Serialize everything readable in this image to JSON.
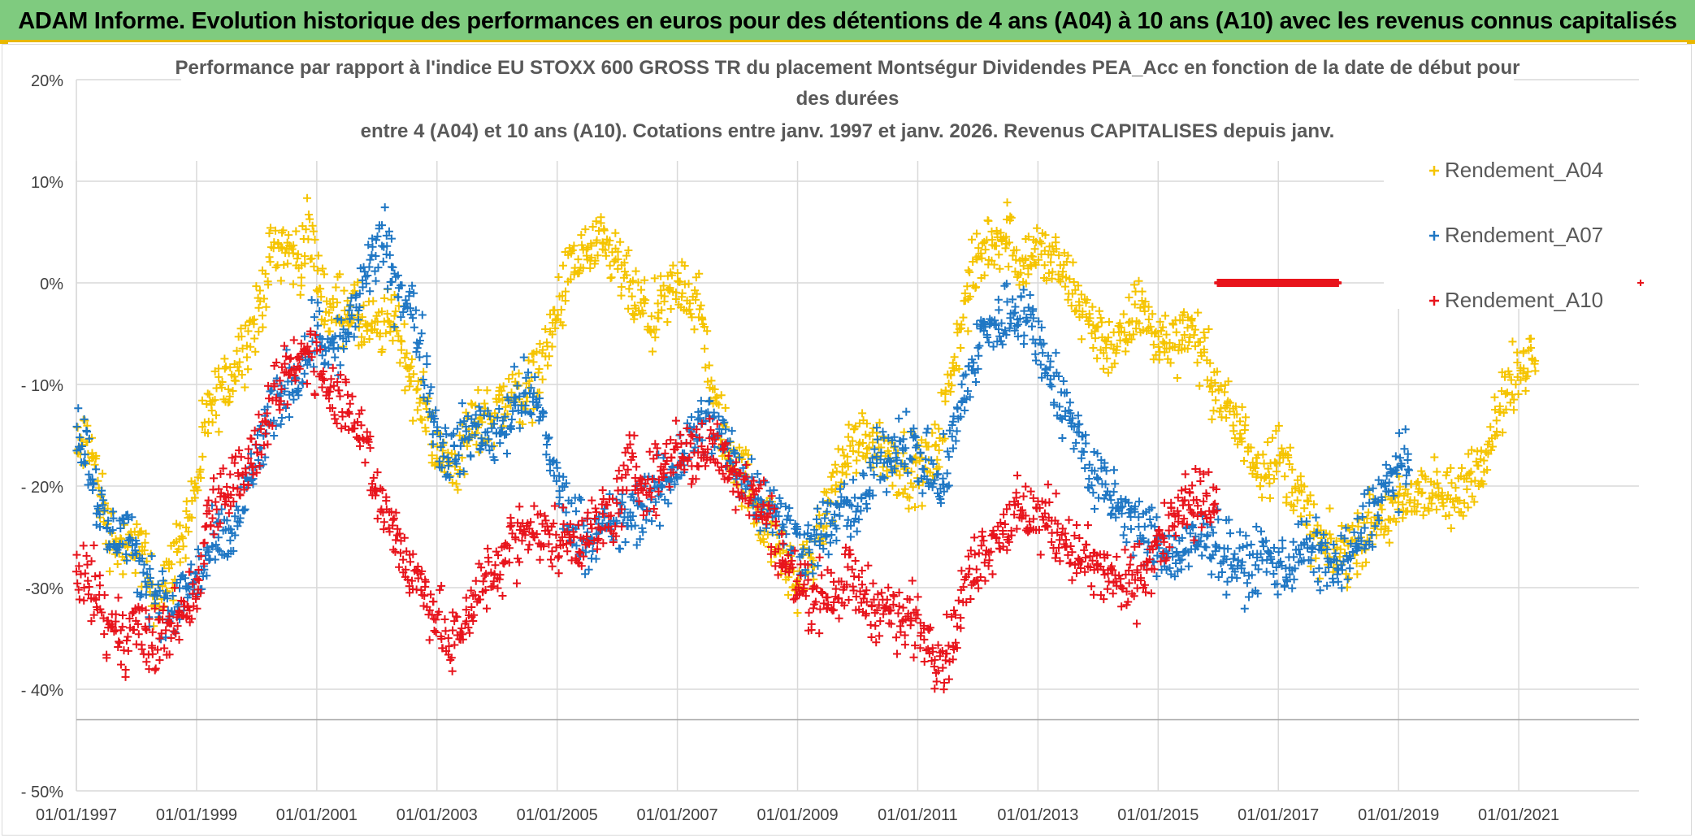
{
  "header": {
    "banner": "ADAM Informe. Evolution historique des performances en euros pour des détentions de 4 ans (A04) à 10 ans (A10) avec les revenus connus capitalisés"
  },
  "colors": {
    "banner_bg": "#7fcb7f",
    "banner_border": "#e8b800",
    "A04": "#f5c400",
    "A07": "#1f77c4",
    "A10": "#e8141c",
    "grid": "#d9d9d9",
    "text": "#404040"
  },
  "chart_data": {
    "type": "scatter",
    "marker": "plus",
    "title_lines": [
      "Performance par rapport à l'indice EU STOXX 600 GROSS TR  du placement Montségur Dividendes PEA_Acc en fonction de la date de début pour",
      "des durées",
      "entre 4 (A04) et 10 ans (A10). Cotations entre janv. 1997 et janv. 2026. Revenus CAPITALISES depuis janv."
    ],
    "x_tick_labels": [
      "01/01/1997",
      "01/01/1999",
      "01/01/2001",
      "01/01/2003",
      "01/01/2005",
      "01/01/2007",
      "01/01/2009",
      "01/01/2011",
      "01/01/2013",
      "01/01/2015",
      "01/01/2017",
      "01/01/2019",
      "01/01/2021"
    ],
    "xlim": [
      "1997-01-01",
      "2023-01-01"
    ],
    "y_tick_labels": [
      "20%",
      "10%",
      "0%",
      "- 10%",
      "- 20%",
      "-30%",
      "- 40%",
      "- 50%"
    ],
    "y_tick_values": [
      20,
      10,
      0,
      -10,
      -20,
      -30,
      -40,
      -50
    ],
    "ylim": [
      -50,
      20
    ],
    "y_reference_line": -43,
    "legend_position": "right",
    "grid": true,
    "series": [
      {
        "name": "Rendement_A04",
        "color_key": "A04",
        "points": [
          [
            1997.0,
            -17
          ],
          [
            1997.2,
            -15
          ],
          [
            1997.5,
            -24
          ],
          [
            1997.8,
            -27
          ],
          [
            1998.0,
            -25
          ],
          [
            1998.3,
            -31
          ],
          [
            1998.6,
            -28
          ],
          [
            1998.8,
            -24
          ],
          [
            1999.0,
            -20
          ],
          [
            1999.2,
            -13
          ],
          [
            1999.5,
            -10
          ],
          [
            1999.8,
            -6
          ],
          [
            2000.0,
            -4
          ],
          [
            2000.2,
            2
          ],
          [
            2000.4,
            4
          ],
          [
            2000.7,
            2
          ],
          [
            2000.9,
            5
          ],
          [
            2001.0,
            1
          ],
          [
            2001.2,
            -3
          ],
          [
            2001.5,
            -2
          ],
          [
            2001.7,
            -4
          ],
          [
            2002.0,
            -5
          ],
          [
            2002.3,
            -3
          ],
          [
            2002.6,
            -10
          ],
          [
            2002.9,
            -14
          ],
          [
            2003.0,
            -17
          ],
          [
            2003.3,
            -18
          ],
          [
            2003.6,
            -14
          ],
          [
            2003.9,
            -13
          ],
          [
            2004.2,
            -11
          ],
          [
            2004.5,
            -11
          ],
          [
            2004.8,
            -7
          ],
          [
            2005.0,
            -3
          ],
          [
            2005.2,
            1
          ],
          [
            2005.5,
            3
          ],
          [
            2005.8,
            3
          ],
          [
            2006.0,
            2
          ],
          [
            2006.3,
            -2
          ],
          [
            2006.6,
            -4
          ],
          [
            2006.9,
            -1
          ],
          [
            2007.1,
            0
          ],
          [
            2007.4,
            -3
          ],
          [
            2007.6,
            -12
          ],
          [
            2007.9,
            -17
          ],
          [
            2008.2,
            -20
          ],
          [
            2008.4,
            -23
          ],
          [
            2008.7,
            -26
          ],
          [
            2009.0,
            -30
          ],
          [
            2009.3,
            -26
          ],
          [
            2009.6,
            -20
          ],
          [
            2009.9,
            -16
          ],
          [
            2010.2,
            -15
          ],
          [
            2010.5,
            -17
          ],
          [
            2010.8,
            -18
          ],
          [
            2011.0,
            -19
          ],
          [
            2011.3,
            -17
          ],
          [
            2011.6,
            -8
          ],
          [
            2011.8,
            -2
          ],
          [
            2012.0,
            2
          ],
          [
            2012.2,
            4
          ],
          [
            2012.5,
            5
          ],
          [
            2012.7,
            2
          ],
          [
            2013.0,
            3
          ],
          [
            2013.3,
            2
          ],
          [
            2013.6,
            -1
          ],
          [
            2013.9,
            -4
          ],
          [
            2014.1,
            -6
          ],
          [
            2014.4,
            -6
          ],
          [
            2014.7,
            -2
          ],
          [
            2014.9,
            -5
          ],
          [
            2015.2,
            -6
          ],
          [
            2015.5,
            -4
          ],
          [
            2015.8,
            -8
          ],
          [
            2016.1,
            -12
          ],
          [
            2016.4,
            -15
          ],
          [
            2016.7,
            -18
          ],
          [
            2017.0,
            -17
          ],
          [
            2017.3,
            -20
          ],
          [
            2017.6,
            -25
          ],
          [
            2017.9,
            -27
          ],
          [
            2018.2,
            -26
          ],
          [
            2018.5,
            -24
          ],
          [
            2018.8,
            -23
          ],
          [
            2019.1,
            -22
          ],
          [
            2019.4,
            -20
          ],
          [
            2019.7,
            -21
          ],
          [
            2019.9,
            -22
          ],
          [
            2020.1,
            -20
          ],
          [
            2020.4,
            -17
          ],
          [
            2020.7,
            -12
          ],
          [
            2020.9,
            -10
          ],
          [
            2021.1,
            -8
          ],
          [
            2021.3,
            -6
          ]
        ]
      },
      {
        "name": "Rendement_A07",
        "color_key": "A07",
        "points": [
          [
            1997.0,
            -14
          ],
          [
            1997.2,
            -17
          ],
          [
            1997.5,
            -25
          ],
          [
            1997.8,
            -24
          ],
          [
            1998.0,
            -28
          ],
          [
            1998.3,
            -30
          ],
          [
            1998.6,
            -33
          ],
          [
            1998.8,
            -30
          ],
          [
            1999.0,
            -29
          ],
          [
            1999.3,
            -26
          ],
          [
            1999.6,
            -25
          ],
          [
            1999.8,
            -21
          ],
          [
            2000.0,
            -17
          ],
          [
            2000.2,
            -14
          ],
          [
            2000.5,
            -10
          ],
          [
            2000.7,
            -9
          ],
          [
            2001.0,
            -4
          ],
          [
            2001.2,
            -7
          ],
          [
            2001.4,
            -6
          ],
          [
            2001.7,
            -2
          ],
          [
            2001.9,
            2
          ],
          [
            2002.1,
            4
          ],
          [
            2002.3,
            0
          ],
          [
            2002.6,
            -3
          ],
          [
            2002.8,
            -8
          ],
          [
            2003.0,
            -15
          ],
          [
            2003.2,
            -17
          ],
          [
            2003.4,
            -16
          ],
          [
            2003.7,
            -14
          ],
          [
            2003.9,
            -15
          ],
          [
            2004.2,
            -13
          ],
          [
            2004.4,
            -11
          ],
          [
            2004.7,
            -12
          ],
          [
            2004.9,
            -17
          ],
          [
            2005.0,
            -20
          ],
          [
            2005.3,
            -24
          ],
          [
            2005.6,
            -25
          ],
          [
            2005.9,
            -24
          ],
          [
            2006.2,
            -23
          ],
          [
            2006.5,
            -22
          ],
          [
            2006.8,
            -20
          ],
          [
            2007.0,
            -18
          ],
          [
            2007.3,
            -14
          ],
          [
            2007.6,
            -14
          ],
          [
            2007.9,
            -17
          ],
          [
            2008.1,
            -19
          ],
          [
            2008.4,
            -21
          ],
          [
            2008.7,
            -23
          ],
          [
            2008.9,
            -25
          ],
          [
            2009.2,
            -26
          ],
          [
            2009.5,
            -24
          ],
          [
            2009.8,
            -22
          ],
          [
            2010.0,
            -23
          ],
          [
            2010.3,
            -18
          ],
          [
            2010.6,
            -16
          ],
          [
            2010.9,
            -16
          ],
          [
            2011.1,
            -18
          ],
          [
            2011.4,
            -20
          ],
          [
            2011.6,
            -15
          ],
          [
            2011.9,
            -8
          ],
          [
            2012.1,
            -5
          ],
          [
            2012.4,
            -4
          ],
          [
            2012.6,
            -2
          ],
          [
            2012.9,
            -4
          ],
          [
            2013.1,
            -7
          ],
          [
            2013.4,
            -12
          ],
          [
            2013.7,
            -15
          ],
          [
            2013.9,
            -19
          ],
          [
            2014.2,
            -21
          ],
          [
            2014.5,
            -23
          ],
          [
            2014.8,
            -25
          ],
          [
            2015.0,
            -26
          ],
          [
            2015.3,
            -27
          ],
          [
            2015.6,
            -26
          ],
          [
            2015.9,
            -25
          ],
          [
            2016.2,
            -27
          ],
          [
            2016.5,
            -28
          ],
          [
            2016.8,
            -27
          ],
          [
            2017.1,
            -28
          ],
          [
            2017.4,
            -26
          ],
          [
            2017.7,
            -27
          ],
          [
            2018.0,
            -28
          ],
          [
            2018.3,
            -26
          ],
          [
            2018.5,
            -23
          ],
          [
            2018.8,
            -20
          ],
          [
            2019.0,
            -18
          ],
          [
            2019.2,
            -19
          ]
        ]
      },
      {
        "name": "Rendement_A10",
        "color_key": "A10",
        "points": [
          [
            1997.0,
            -28
          ],
          [
            1997.3,
            -30
          ],
          [
            1997.5,
            -34
          ],
          [
            1997.8,
            -35
          ],
          [
            1998.0,
            -33
          ],
          [
            1998.2,
            -36
          ],
          [
            1998.5,
            -34
          ],
          [
            1998.7,
            -33
          ],
          [
            1999.0,
            -31
          ],
          [
            1999.2,
            -22
          ],
          [
            1999.5,
            -20
          ],
          [
            1999.7,
            -19
          ],
          [
            2000.0,
            -17
          ],
          [
            2000.2,
            -13
          ],
          [
            2000.5,
            -9
          ],
          [
            2000.7,
            -8
          ],
          [
            2000.9,
            -6
          ],
          [
            2001.1,
            -9
          ],
          [
            2001.3,
            -11
          ],
          [
            2001.6,
            -12
          ],
          [
            2001.8,
            -16
          ],
          [
            2002.0,
            -21
          ],
          [
            2002.3,
            -24
          ],
          [
            2002.5,
            -28
          ],
          [
            2002.8,
            -30
          ],
          [
            2003.0,
            -33
          ],
          [
            2003.2,
            -36
          ],
          [
            2003.4,
            -34
          ],
          [
            2003.7,
            -30
          ],
          [
            2003.9,
            -29
          ],
          [
            2004.2,
            -26
          ],
          [
            2004.5,
            -24
          ],
          [
            2004.8,
            -25
          ],
          [
            2005.1,
            -25
          ],
          [
            2005.4,
            -25
          ],
          [
            2005.7,
            -24
          ],
          [
            2006.0,
            -22
          ],
          [
            2006.2,
            -18
          ],
          [
            2006.5,
            -20
          ],
          [
            2006.7,
            -19
          ],
          [
            2007.0,
            -16
          ],
          [
            2007.3,
            -17
          ],
          [
            2007.5,
            -16
          ],
          [
            2007.8,
            -17
          ],
          [
            2008.0,
            -19
          ],
          [
            2008.3,
            -21
          ],
          [
            2008.6,
            -24
          ],
          [
            2008.8,
            -28
          ],
          [
            2009.1,
            -30
          ],
          [
            2009.3,
            -31
          ],
          [
            2009.6,
            -30
          ],
          [
            2009.9,
            -29
          ],
          [
            2010.1,
            -31
          ],
          [
            2010.4,
            -32
          ],
          [
            2010.7,
            -33
          ],
          [
            2010.9,
            -33
          ],
          [
            2011.2,
            -35
          ],
          [
            2011.4,
            -37
          ],
          [
            2011.6,
            -35
          ],
          [
            2011.8,
            -30
          ],
          [
            2012.0,
            -27
          ],
          [
            2012.3,
            -25
          ],
          [
            2012.6,
            -23
          ],
          [
            2012.9,
            -23
          ],
          [
            2013.1,
            -23
          ],
          [
            2013.4,
            -25
          ],
          [
            2013.7,
            -27
          ],
          [
            2013.9,
            -28
          ],
          [
            2014.2,
            -29
          ],
          [
            2014.5,
            -30
          ],
          [
            2014.8,
            -28
          ],
          [
            2015.0,
            -26
          ],
          [
            2015.3,
            -23
          ],
          [
            2015.6,
            -22
          ],
          [
            2015.9,
            -21
          ],
          [
            2016.0,
            -23
          ]
        ]
      },
      {
        "name": "",
        "color_key": "A10",
        "points": [
          [
            2016.0,
            0
          ],
          [
            2018.0,
            0
          ]
        ]
      }
    ]
  }
}
